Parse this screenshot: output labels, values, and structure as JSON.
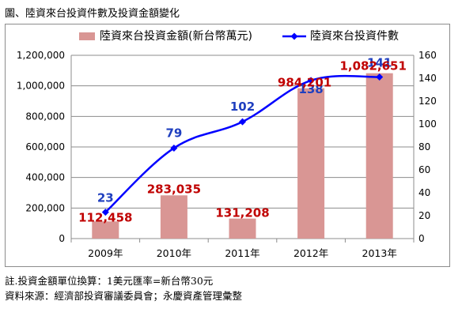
{
  "title": "圖、陸資來台投資件數及投資金額變化",
  "notes": {
    "line1": "註.投資金額單位換算：1美元匯率=新台幣30元",
    "line2": "資料來源：經濟部投資審議委員會；永慶資產管理彙整"
  },
  "colors": {
    "bar": "#d99694",
    "line": "#0000ff",
    "amount_label": "#c00000",
    "count_label": "#1f3fbf"
  },
  "chart_data": {
    "type": "bar",
    "categories": [
      "2009年",
      "2010年",
      "2011年",
      "2012年",
      "2013年"
    ],
    "series": [
      {
        "name": "陸資來台投資金額(新台幣萬元)",
        "type": "bar",
        "axis": "left",
        "values": [
          112458,
          283035,
          131208,
          984201,
          1082651
        ],
        "labels": [
          "112,458",
          "283,035",
          "131,208",
          "984,201",
          "1,082,651"
        ]
      },
      {
        "name": "陸資來台投資件數",
        "type": "line",
        "axis": "right",
        "values": [
          23,
          79,
          102,
          138,
          141
        ],
        "labels": [
          "23",
          "79",
          "102",
          "138",
          "141"
        ]
      }
    ],
    "left_axis": {
      "min": 0,
      "max": 1200000,
      "ticks": [
        "0",
        "200,000",
        "400,000",
        "600,000",
        "800,000",
        "1,000,000",
        "1,200,000"
      ]
    },
    "right_axis": {
      "min": 0,
      "max": 160,
      "ticks": [
        "0",
        "20",
        "40",
        "60",
        "80",
        "100",
        "120",
        "140",
        "160"
      ]
    },
    "legend_position": "top",
    "grid": true
  }
}
